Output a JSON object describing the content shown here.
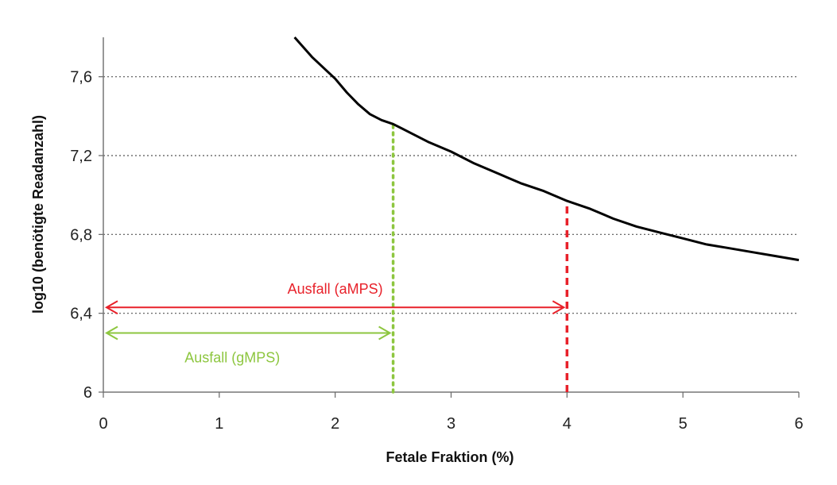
{
  "chart_data": {
    "type": "line",
    "xlabel": "Fetale Fraktion (%)",
    "ylabel": "log10 (benötigte Readanzahl)",
    "xlim": [
      0,
      6
    ],
    "ylim": [
      6,
      7.8
    ],
    "x_ticks": [
      "0",
      "1",
      "2",
      "3",
      "4",
      "5",
      "6"
    ],
    "y_ticks": [
      "6",
      "6,4",
      "6,8",
      "7,2",
      "7,6"
    ],
    "grid": "horizontal-dotted",
    "series": [
      {
        "color": "#000000",
        "x": [
          1.65,
          1.8,
          2.0,
          2.1,
          2.2,
          2.3,
          2.4,
          2.5,
          2.6,
          2.8,
          3.0,
          3.2,
          3.4,
          3.6,
          3.8,
          4.0,
          4.2,
          4.4,
          4.6,
          4.8,
          5.0,
          5.2,
          5.4,
          5.6,
          5.8,
          6.0
        ],
        "y": [
          7.8,
          7.7,
          7.59,
          7.52,
          7.46,
          7.41,
          7.38,
          7.36,
          7.33,
          7.27,
          7.22,
          7.16,
          7.11,
          7.06,
          7.02,
          6.97,
          6.93,
          6.88,
          6.84,
          6.81,
          6.78,
          6.75,
          6.73,
          6.71,
          6.69,
          6.67
        ]
      }
    ],
    "vlines": [
      {
        "x": 2.5,
        "color": "#8dc63f",
        "style": "dotted"
      },
      {
        "x": 4.0,
        "color": "#e8212a",
        "style": "dashed"
      }
    ],
    "annotations": [
      {
        "text": "Ausfall (aMPS)",
        "color": "#e8212a",
        "x_from": 0,
        "x_to": 4.0,
        "y": 6.43
      },
      {
        "text": "Ausfall (gMPS)",
        "color": "#8dc63f",
        "x_from": 0,
        "x_to": 2.5,
        "y": 6.3
      }
    ]
  }
}
